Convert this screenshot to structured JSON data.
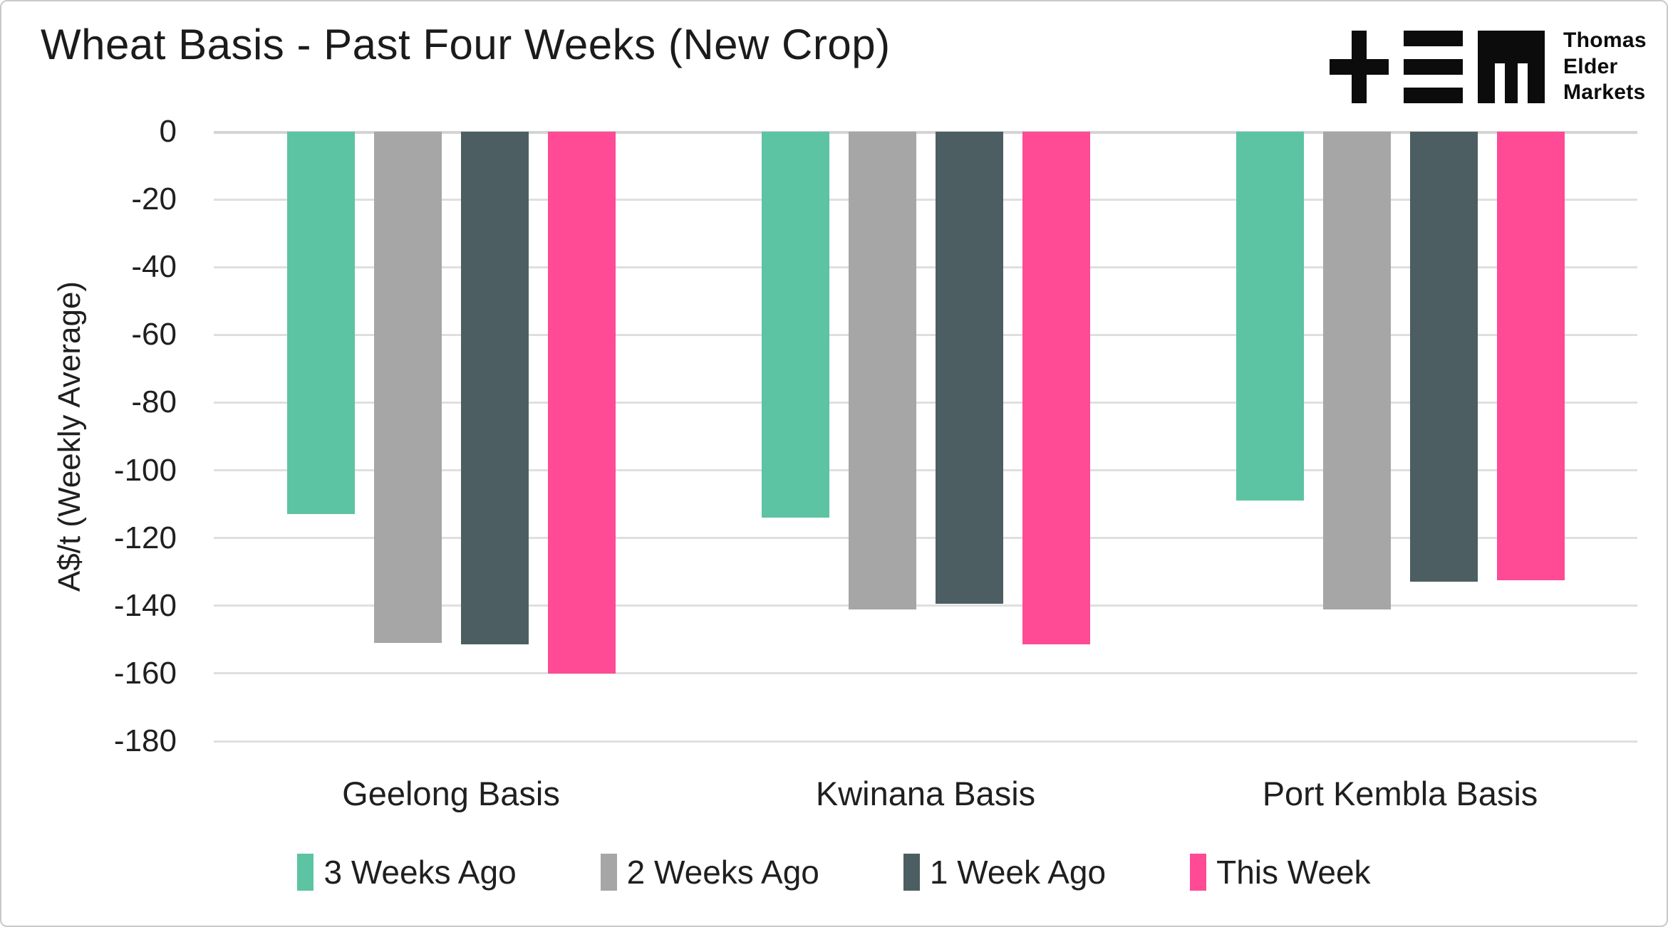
{
  "header": {
    "title": "Wheat Basis - Past Four Weeks (New Crop)",
    "logo": {
      "symbol_name": "tem-plus-bars-m-logo",
      "lines": [
        "Thomas",
        "Elder",
        "Markets"
      ]
    }
  },
  "chart_data": {
    "type": "bar",
    "orientation": "vertical-negative",
    "title": "Wheat Basis - Past Four Weeks (New Crop)",
    "xlabel": "",
    "ylabel": "A$/t (Weekly Average)",
    "ylim": [
      -180,
      0
    ],
    "yticks": [
      0,
      -20,
      -40,
      -60,
      -80,
      -100,
      -120,
      -140,
      -160,
      -180
    ],
    "grid": true,
    "legend_position": "bottom",
    "categories": [
      "Geelong Basis",
      "Kwinana Basis",
      "Port Kembla Basis"
    ],
    "series": [
      {
        "name": "3 Weeks Ago",
        "color": "#5CC3A3",
        "values": [
          -113,
          -114,
          -109
        ]
      },
      {
        "name": "2 Weeks Ago",
        "color": "#A6A6A6",
        "values": [
          -151,
          -141,
          -141
        ]
      },
      {
        "name": "1 Week Ago",
        "color": "#4C5E62",
        "values": [
          -151.5,
          -139.5,
          -133
        ]
      },
      {
        "name": "This Week",
        "color": "#FF4A95",
        "values": [
          -160,
          -151.5,
          -132.5
        ]
      }
    ]
  },
  "colors": {
    "gridline": "#DFDFDF",
    "zero_line": "#D4D4D4",
    "text": "#1F1F1F",
    "logo": "#0C0C0C",
    "border": "#C9C9C9",
    "background": "#FFFFFF"
  }
}
